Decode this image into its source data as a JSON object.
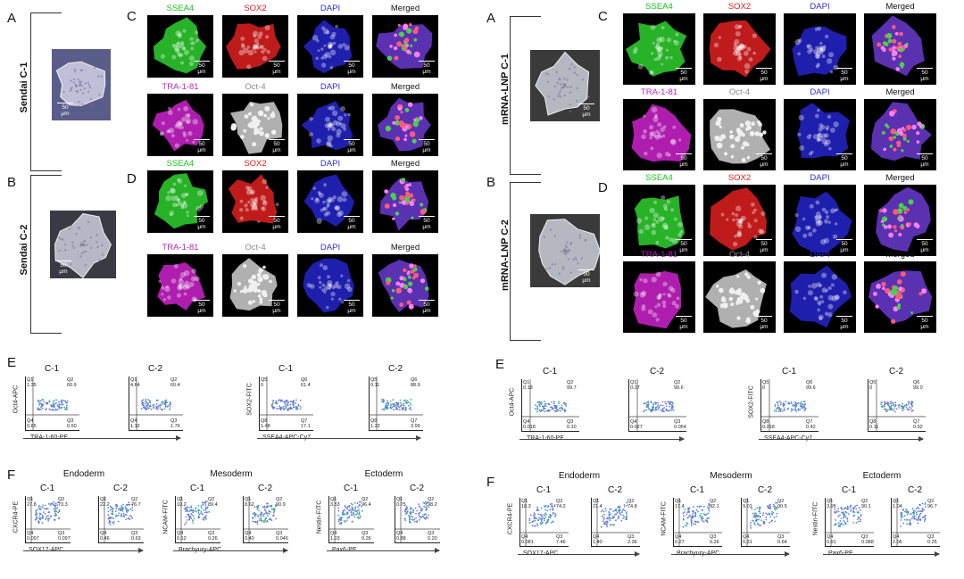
{
  "colors": {
    "ssea4": "#19c119",
    "sox2": "#e01a1a",
    "dapi": "#2a2ae0",
    "tra": "#c21ec2",
    "oct4": "#8a8a8a",
    "merged": "#111111"
  },
  "left": {
    "A": "A",
    "B": "B",
    "C": "C",
    "D": "D",
    "E": "E",
    "F": "F",
    "lineA": "Sendai C-1",
    "lineB": "Sendai C-2",
    "scale": "50 μm",
    "rowC1": [
      "SSEA4",
      "SOX2",
      "DAPI",
      "Merged"
    ],
    "rowC2": [
      "TRA-1-81",
      "Oct-4",
      "DAPI",
      "Merged"
    ],
    "rowD1": [
      "SSEA4",
      "SOX2",
      "DAPI",
      "Merged"
    ],
    "rowD2": [
      "TRA-1-81",
      "Oct-4",
      "DAPI",
      "Merged"
    ],
    "E_titles": [
      "C-1",
      "C-2",
      "C-1",
      "C-2"
    ],
    "E_y1": "Oct4-APC",
    "E_x1": "TRA-1-60-PE",
    "E_y2": "SOX2-FITC",
    "E_x2": "SSEA4-APC-Cy7",
    "E_q": [
      [
        "Q1",
        "1.35",
        "Q2",
        "60.9",
        "Q4",
        "0.65",
        "Q3",
        "0.50"
      ],
      [
        "Q1",
        "4.64",
        "Q2",
        "60.4",
        "Q4",
        "1.12",
        "Q3",
        "1.76"
      ],
      [
        "Q5",
        "0",
        "Q6",
        "61.4",
        "Q8",
        "1.48",
        "Q7",
        "17.1"
      ],
      [
        "Q5",
        "0.11",
        "Q6",
        "88.9",
        "Q8",
        "1.32",
        "Q7",
        "3.99"
      ]
    ],
    "F_groups": [
      "Endoderm",
      "Mesoderm",
      "Ectoderm"
    ],
    "F_titles": [
      "C-1",
      "C-2",
      "C-1",
      "C-2",
      "C-1",
      "C-2"
    ],
    "F_y": [
      "CXCR4-PE",
      "NCAM-FITC",
      "Nestin-FITC"
    ],
    "F_x": [
      "SOX17-APC",
      "Brachyury-APC",
      "Pax6-PE"
    ],
    "F_q": [
      [
        "Q1",
        "27.8",
        "Q2",
        "73.3",
        "Q4",
        "0.097",
        "Q3",
        "0.097"
      ],
      [
        "Q1",
        "22.2",
        "Q2",
        "76.7",
        "Q4",
        "0.46",
        "Q3",
        "0.63"
      ],
      [
        "Q1",
        "10.2",
        "Q2",
        "89.4",
        "Q4",
        "0.12",
        "Q3",
        "0.26"
      ],
      [
        "Q1",
        "8.62",
        "Q2",
        "90.9",
        "Q4",
        "0.40",
        "Q3",
        "0.046"
      ],
      [
        "Q1",
        "3.53",
        "Q2",
        "96.4",
        "Q4",
        "1.03",
        "Q3",
        "0.26"
      ],
      [
        "Q1",
        "0.75",
        "Q2",
        "98.2",
        "Q4",
        "0.88",
        "Q3",
        "0.20"
      ]
    ]
  },
  "right": {
    "A": "A",
    "B": "B",
    "C": "C",
    "D": "D",
    "E": "E",
    "F": "F",
    "lineA": "mRNA-LNP C-1",
    "lineB": "mRNA-LNP C-2",
    "scale": "50 μm",
    "rowC1": [
      "SSEA4",
      "SOX2",
      "DAPI",
      "Merged"
    ],
    "rowC2": [
      "TRA-1-81",
      "Oct-4",
      "DAPI",
      "Merged"
    ],
    "rowD1": [
      "SSEA4",
      "SOX2",
      "DAPI",
      "Merged"
    ],
    "rowD2": [
      "TRA-1-81",
      "Oct-4",
      "DAPI",
      "Merged"
    ],
    "E_titles": [
      "C-1",
      "C-2",
      "C-1",
      "C-2"
    ],
    "E_y1": "Oct4-APC",
    "E_x1": "TRA-1-60-PE",
    "E_y2": "SOX2-FITC",
    "E_x2": "SSEA4-APC-Cy7",
    "E_q": [
      [
        "Q1",
        "0.18",
        "Q2",
        "99.7",
        "Q4",
        "0.018",
        "Q3",
        "0.10"
      ],
      [
        "Q1",
        "0.27",
        "Q2",
        "99.6",
        "Q4",
        "0.027",
        "Q3",
        "0.064"
      ],
      [
        "Q5",
        "0",
        "Q6",
        "99.6",
        "Q8",
        "0.018",
        "Q7",
        "0.42"
      ],
      [
        "Q5",
        "0",
        "Q6",
        "99.0",
        "Q8",
        "0.11",
        "Q7",
        "0.92"
      ]
    ],
    "F_groups": [
      "Endoderm",
      "Mesoderm",
      "Ectoderm"
    ],
    "F_titles": [
      "C-1",
      "C-2",
      "C-1",
      "C-2",
      "C-1",
      "C-2"
    ],
    "F_y": [
      "CXCR4-PE",
      "NCAM-FITC",
      "Nestin-FITC"
    ],
    "F_x": [
      "SOX17-APC",
      "Brachyury-APC",
      "Pax6-PE"
    ],
    "F_q": [
      [
        "Q1",
        "18.3",
        "Q2",
        "74.2",
        "Q4",
        "0.081",
        "Q3",
        "7.46"
      ],
      [
        "Q1",
        "21.4",
        "Q2",
        "74.8",
        "Q4",
        "1.40",
        "Q3",
        "2.36"
      ],
      [
        "Q1",
        "17.4",
        "Q2",
        "82.1",
        "Q4",
        "0.27",
        "Q3",
        "0.26"
      ],
      [
        "Q1",
        "9.01",
        "Q2",
        "90.5",
        "Q4",
        "0.31",
        "Q3",
        "0.64"
      ],
      [
        "Q1",
        "3.95",
        "Q2",
        "90.1",
        "Q4",
        "0.91",
        "Q3",
        "0.088"
      ],
      [
        "Q1",
        "1.04",
        "Q2",
        "96.7",
        "Q4",
        "2.06",
        "Q3",
        "0.25"
      ]
    ]
  }
}
